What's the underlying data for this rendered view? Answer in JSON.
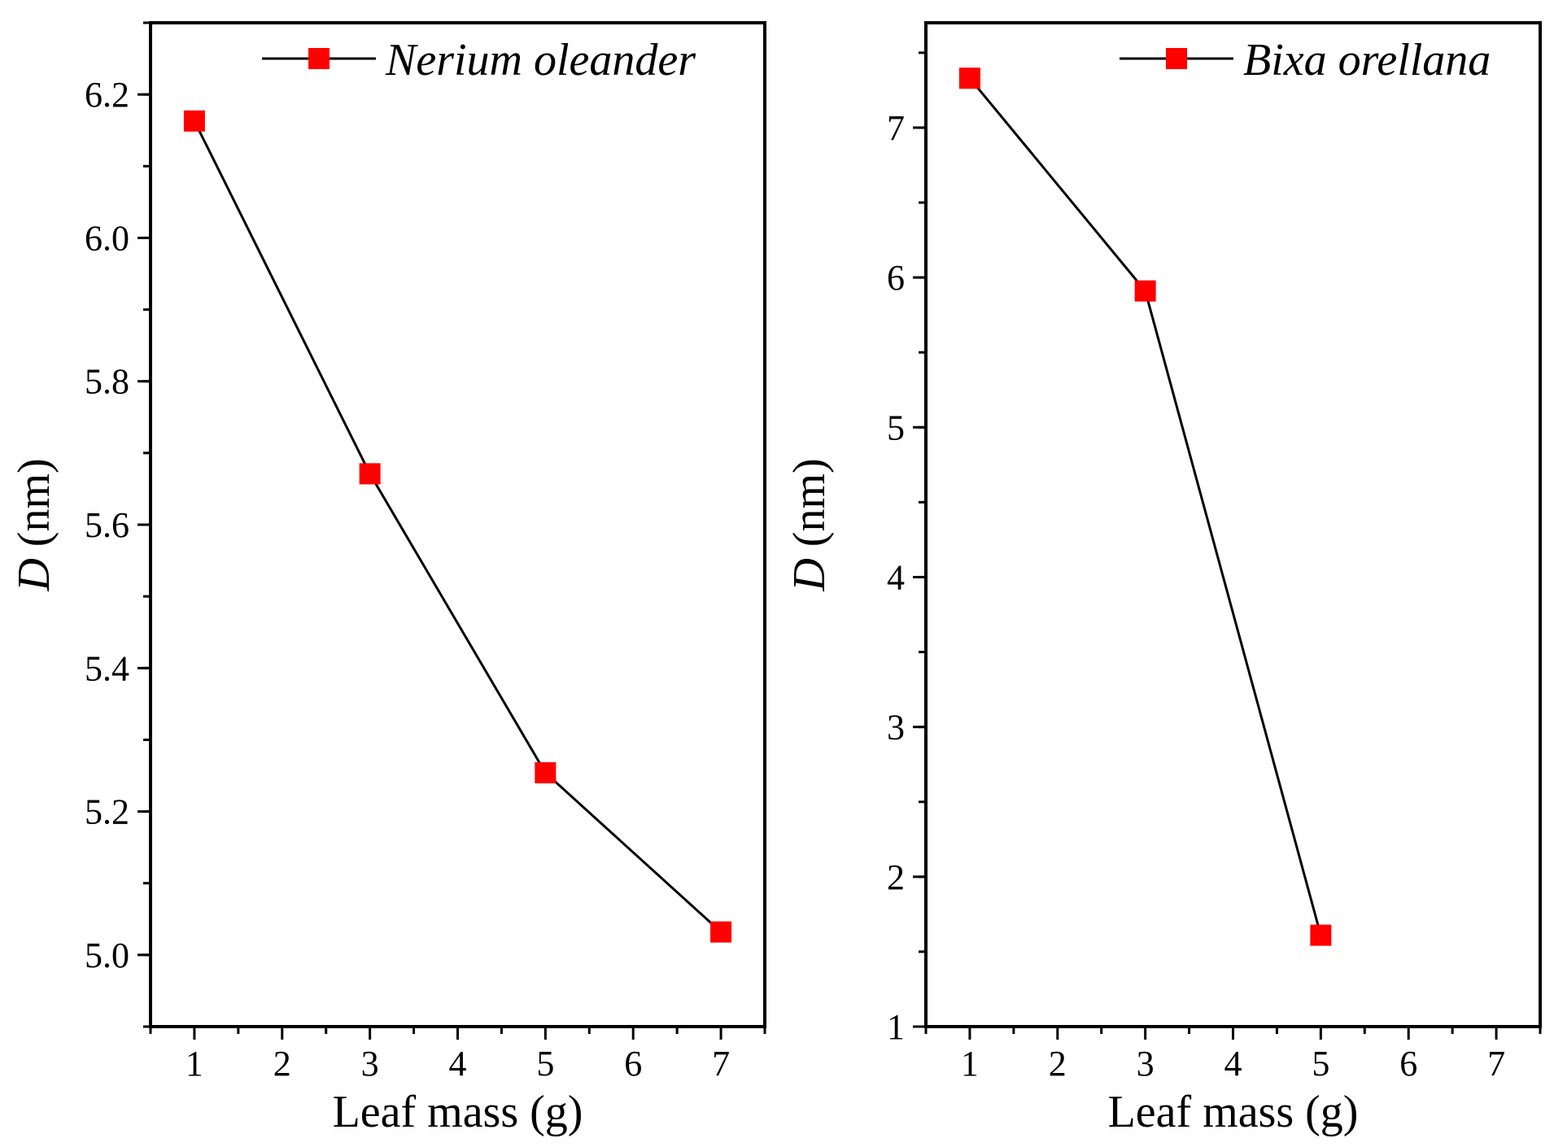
{
  "chart_data": [
    {
      "type": "line",
      "x": [
        1,
        3,
        5,
        7
      ],
      "series": [
        {
          "name": "Nerium oleander",
          "values": [
            6.163,
            5.671,
            5.254,
            5.032
          ]
        }
      ],
      "xlabel": "Leaf mass (g)",
      "ylabel_var": "D",
      "ylabel_unit": " (nm)",
      "xlim": [
        0.5,
        7.5
      ],
      "ylim": [
        4.9,
        6.3
      ],
      "xticks": [
        1,
        2,
        3,
        4,
        5,
        6,
        7
      ],
      "yticks": [
        5.0,
        5.2,
        5.4,
        5.6,
        5.8,
        6.0,
        6.2
      ],
      "ytick_labels": [
        "5.0",
        "5.2",
        "5.4",
        "5.6",
        "5.8",
        "6.0",
        "6.2"
      ],
      "legend_position": "top-right",
      "marker_color": "#ff0000",
      "line_color": "#000000"
    },
    {
      "type": "line",
      "x": [
        1,
        3,
        5
      ],
      "series": [
        {
          "name": "Bixa orellana",
          "values": [
            7.33,
            5.91,
            1.61
          ]
        }
      ],
      "xlabel": "Leaf mass (g)",
      "ylabel_var": "D",
      "ylabel_unit": " (nm)",
      "xlim": [
        0.5,
        7.5
      ],
      "ylim": [
        1,
        7.7
      ],
      "xticks": [
        1,
        2,
        3,
        4,
        5,
        6,
        7
      ],
      "yticks": [
        1,
        2,
        3,
        4,
        5,
        6,
        7
      ],
      "ytick_labels": [
        "1",
        "2",
        "3",
        "4",
        "5",
        "6",
        "7"
      ],
      "legend_position": "top-right",
      "marker_color": "#ff0000",
      "line_color": "#000000"
    }
  ]
}
